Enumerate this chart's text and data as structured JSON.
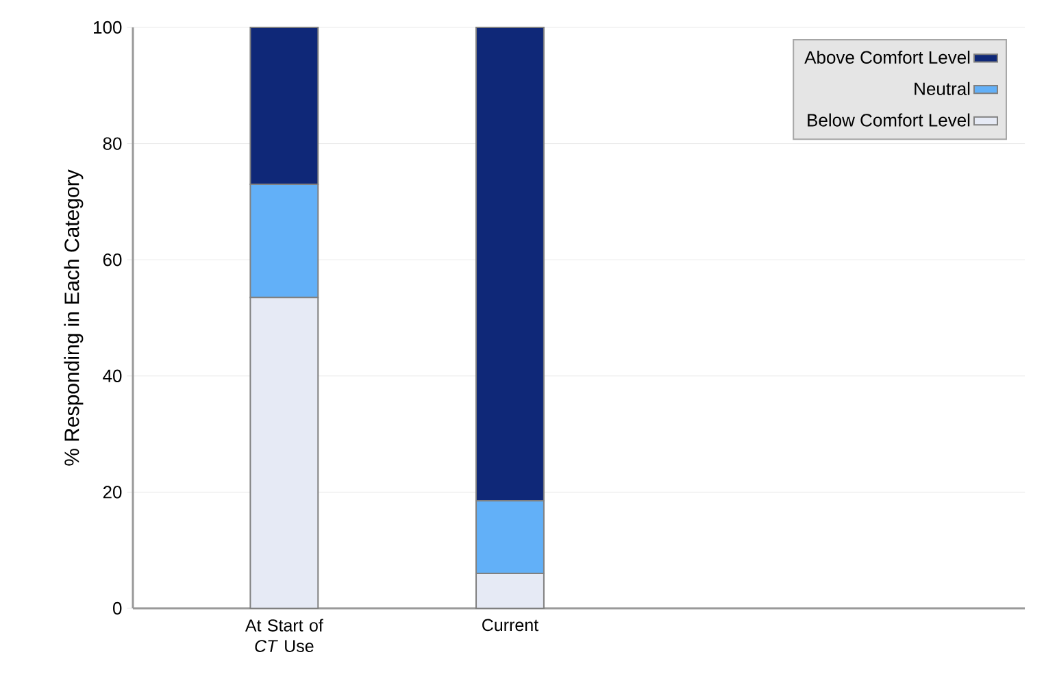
{
  "chart_data": {
    "type": "bar",
    "stacked": true,
    "ylabel": "% Responding in Each Category",
    "categories": [
      "At Start of *CT* Use",
      "Current"
    ],
    "series": [
      {
        "name": "Below Comfort Level",
        "color": "#e6eaf5",
        "values": [
          53.5,
          6
        ]
      },
      {
        "name": "Neutral",
        "color": "#62b0f8",
        "values": [
          19.5,
          12.5
        ]
      },
      {
        "name": "Above Comfort Level",
        "color": "#0f2878",
        "values": [
          27,
          81.5
        ]
      }
    ],
    "ylim": [
      0,
      100
    ],
    "yticks": [
      0,
      20,
      40,
      60,
      80,
      100
    ],
    "grid": "y",
    "legend": "top right"
  }
}
